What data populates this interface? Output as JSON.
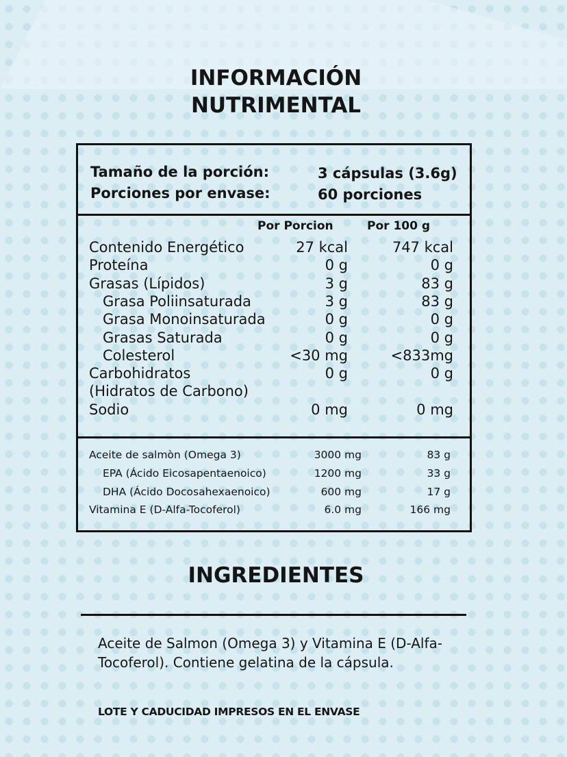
{
  "title": [
    "INFORMACIÓN",
    "NUTRIMENTAL"
  ],
  "serving": {
    "rows": [
      [
        "Tamaño de la porción:",
        "3 cápsulas (3.6g)"
      ],
      [
        "Porciones por envase:",
        "60 porciones"
      ]
    ]
  },
  "nutrients": {
    "headers": [
      "Por Porcion",
      "Por 100 g"
    ],
    "rows": [
      [
        "Contenido Energético",
        "27 kcal",
        "747 kcal"
      ],
      [
        "Proteína",
        "0 g",
        "0 g"
      ],
      [
        "Grasas (Lípidos)",
        "3 g",
        "83 g"
      ],
      [
        "Grasa Poliinsaturada",
        "3 g",
        "83 g"
      ],
      [
        "Grasa Monoinsaturada",
        "0 g",
        "0 g"
      ],
      [
        "Grasas Saturada",
        "0 g",
        "0 g"
      ],
      [
        "Colesterol",
        "<30 mg",
        "<833mg"
      ],
      [
        "Carbohidratos",
        "0 g",
        "0 g"
      ],
      [
        "(Hidratos de Carbono)"
      ],
      [
        "Sodio",
        "0 mg",
        "0 mg"
      ]
    ]
  },
  "supplements": {
    "rows": [
      [
        "Aceite de salmòn (Omega 3)",
        "3000 mg",
        "83 g"
      ],
      [
        "EPA (Ácido Eicosapentaenoico)",
        "1200 mg",
        "33 g"
      ],
      [
        "DHA (Ácido Docosahexaenoico)",
        "600 mg",
        "17 g"
      ],
      [
        "Vitamina E (D-Alfa-Tocoferol)",
        "6.0 mg",
        "166 mg"
      ]
    ]
  },
  "ingredients": {
    "title": "INGREDIENTES",
    "text": "Aceite de Salmon (Omega 3) y Vitamina E (D-Alfa-Tocoferol). Contiene gelatina de la cápsula.",
    "note": "LOTE Y CADUCIDAD IMPRESOS EN EL ENVASE"
  }
}
